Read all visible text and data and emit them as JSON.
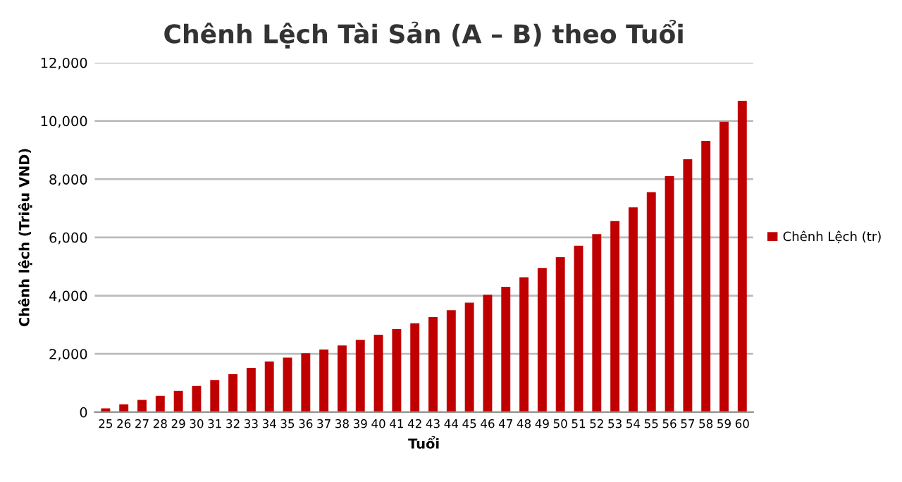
{
  "chart_data": {
    "type": "bar",
    "title": "Chênh Lệch Tài Sản (A – B) theo Tuổi",
    "xlabel": "Tuổi",
    "ylabel": "Chênh lệch (Triệu VND)",
    "categories": [
      "25",
      "26",
      "27",
      "28",
      "29",
      "30",
      "31",
      "32",
      "33",
      "34",
      "35",
      "36",
      "37",
      "38",
      "39",
      "40",
      "41",
      "42",
      "43",
      "44",
      "45",
      "46",
      "47",
      "48",
      "49",
      "50",
      "51",
      "52",
      "53",
      "54",
      "55",
      "56",
      "57",
      "58",
      "59",
      "60"
    ],
    "series": [
      {
        "name": "Chênh Lệch (tr)",
        "color": "#c00000",
        "values": [
          130,
          270,
          420,
          560,
          730,
          900,
          1100,
          1300,
          1520,
          1740,
          1870,
          2020,
          2150,
          2290,
          2480,
          2660,
          2850,
          3050,
          3260,
          3500,
          3760,
          4030,
          4300,
          4630,
          4950,
          5320,
          5710,
          6110,
          6560,
          7030,
          7550,
          8100,
          8680,
          9310,
          9970,
          10690
        ]
      }
    ],
    "ylim": [
      0,
      12000
    ],
    "yticks": [
      {
        "value": 0,
        "label": "0"
      },
      {
        "value": 2000,
        "label": "2,000"
      },
      {
        "value": 4000,
        "label": "4,000"
      },
      {
        "value": 6000,
        "label": "6,000"
      },
      {
        "value": 8000,
        "label": "8,000"
      },
      {
        "value": 10000,
        "label": "10,000"
      },
      {
        "value": 12000,
        "label": "12,000"
      }
    ],
    "grid": "y",
    "legend": "right"
  }
}
